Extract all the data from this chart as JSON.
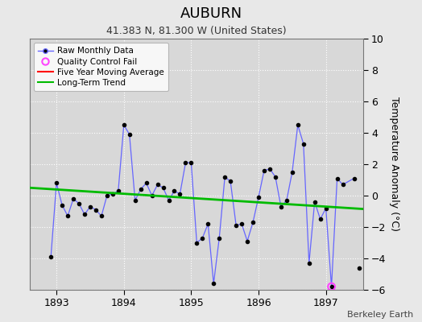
{
  "title": "AUBURN",
  "subtitle": "41.383 N, 81.300 W (United States)",
  "ylabel": "Temperature Anomaly (°C)",
  "attribution": "Berkeley Earth",
  "ylim": [
    -6,
    10
  ],
  "yticks": [
    -6,
    -4,
    -2,
    0,
    2,
    4,
    6,
    8,
    10
  ],
  "xlim": [
    1892.6,
    1897.55
  ],
  "xticks": [
    1893,
    1894,
    1895,
    1896,
    1897
  ],
  "background_color": "#e8e8e8",
  "plot_bg_color": "#d8d8d8",
  "grid_color": "#ffffff",
  "raw_x": [
    1892.917,
    1893.0,
    1893.083,
    1893.167,
    1893.25,
    1893.333,
    1893.417,
    1893.5,
    1893.583,
    1893.667,
    1893.75,
    1893.833,
    1893.917,
    1894.0,
    1894.083,
    1894.167,
    1894.25,
    1894.333,
    1894.417,
    1894.5,
    1894.583,
    1894.667,
    1894.75,
    1894.833,
    1894.917,
    1895.0,
    1895.083,
    1895.167,
    1895.25,
    1895.333,
    1895.417,
    1895.5,
    1895.583,
    1895.667,
    1895.75,
    1895.833,
    1895.917,
    1896.0,
    1896.083,
    1896.167,
    1896.25,
    1896.333,
    1896.417,
    1896.5,
    1896.583,
    1896.667,
    1896.75,
    1896.833,
    1896.917,
    1897.0,
    1897.083,
    1897.167,
    1897.25,
    1897.417
  ],
  "raw_y": [
    -3.9,
    0.8,
    -0.6,
    -1.3,
    -0.2,
    -0.5,
    -1.2,
    -0.7,
    -0.9,
    -1.3,
    0.0,
    0.1,
    0.3,
    4.5,
    3.9,
    -0.3,
    0.4,
    0.8,
    0.0,
    0.7,
    0.5,
    -0.3,
    0.3,
    0.1,
    2.1,
    2.1,
    -3.0,
    -2.7,
    -1.8,
    -5.6,
    -2.7,
    1.2,
    0.9,
    -1.9,
    -1.8,
    -2.9,
    -1.7,
    -0.1,
    1.6,
    1.7,
    1.2,
    -0.7,
    -0.3,
    1.5,
    4.5,
    3.3,
    -4.3,
    -0.4,
    -1.5,
    -0.8,
    -5.8,
    1.1,
    0.7,
    1.1
  ],
  "isolated_x": [
    1897.5
  ],
  "isolated_y": [
    -4.6
  ],
  "qc_fail_x": [
    1897.083
  ],
  "qc_fail_y": [
    -5.8
  ],
  "trend_x": [
    1892.6,
    1897.55
  ],
  "trend_y": [
    0.5,
    -0.85
  ],
  "line_color": "#6666ff",
  "dot_color": "#000000",
  "trend_color": "#00bb00",
  "ma_color": "#ff0000",
  "qc_color": "#ff44ff",
  "title_fontsize": 13,
  "subtitle_fontsize": 9,
  "tick_fontsize": 9,
  "ylabel_fontsize": 9
}
